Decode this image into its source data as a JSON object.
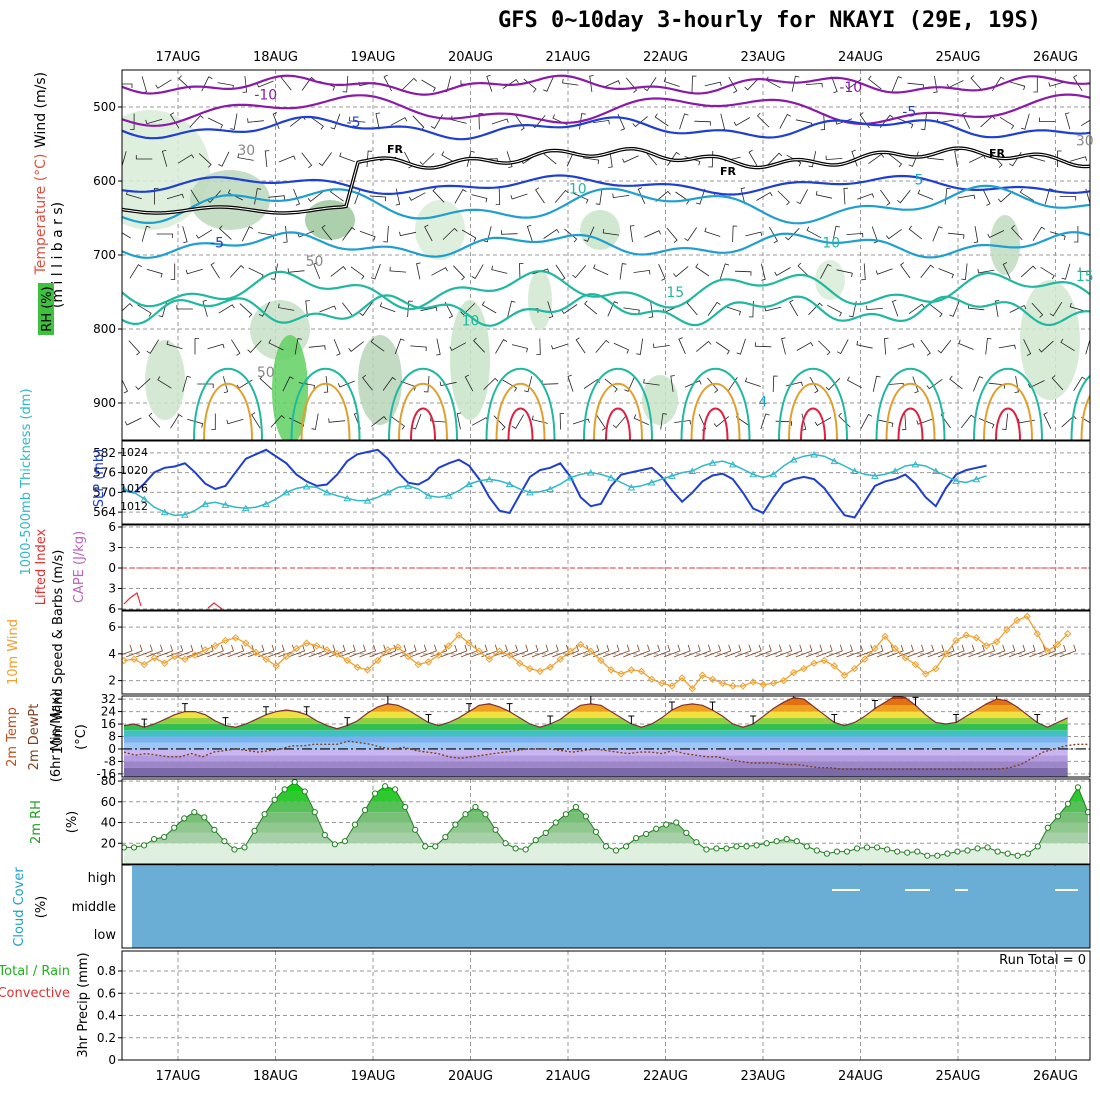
{
  "title": "GFS 0~10day 3-hourly for NKAYI (29E, 19S)",
  "colors": {
    "frame": "#000000",
    "grid": "#9a9a9a",
    "temp_purple": "#8a1aa8",
    "temp_blue": "#1f3fd0",
    "temp_cyan": "#1e9fd0",
    "temp_teal": "#20b8a0",
    "temp_orange": "#e0a030",
    "temp_red": "#e02040",
    "thickness": "#30b8c8",
    "slp": "#1f3fd0",
    "lifted_index": "#e03030",
    "cape": "#c060c0",
    "wind_speed": "#f0a030",
    "wind_barb": "#804020",
    "rh_green": "#10c010",
    "cloud": "#6aaed6",
    "precip_total": "#20b020",
    "precip_conv": "#e03030"
  },
  "chart_data": [
    {
      "id": "upper",
      "type": "contour",
      "ylabels": [
        "Wind (m/s)",
        "Temperature (°C)",
        "RH (%)",
        "(m i l l i b a r s)"
      ],
      "yticks": [
        500,
        600,
        700,
        800,
        900
      ],
      "ylim": [
        450,
        950
      ],
      "freezing_label": "FR",
      "contour_labels": [
        {
          "text": "-10",
          "day": 0.9,
          "p": 490
        },
        {
          "text": "-10",
          "day": 6.9,
          "p": 480
        },
        {
          "text": "-5",
          "day": 1.8,
          "p": 527
        },
        {
          "text": "-5",
          "day": 7.5,
          "p": 513
        },
        {
          "text": "-5",
          "day": 0.4,
          "p": 690
        },
        {
          "text": "5",
          "day": 7.6,
          "p": 605
        },
        {
          "text": "10",
          "day": 3.0,
          "p": 795
        },
        {
          "text": "10",
          "day": 6.7,
          "p": 690
        },
        {
          "text": "15",
          "day": 5.1,
          "p": 757
        },
        {
          "text": "15",
          "day": 9.3,
          "p": 735
        },
        {
          "text": "30",
          "day": 0.7,
          "p": 565
        },
        {
          "text": "30",
          "day": 9.3,
          "p": 552
        },
        {
          "text": "50",
          "day": 1.4,
          "p": 715
        },
        {
          "text": "50",
          "day": 0.9,
          "p": 865
        },
        {
          "text": "10",
          "day": 4.1,
          "p": 617
        },
        {
          "text": "4",
          "day": 6.0,
          "p": 905
        }
      ]
    },
    {
      "id": "thickness_slp",
      "type": "line",
      "ylabel_left": "1000-500mb Thickness (dm)",
      "ylabel_right": "SLP (mb)",
      "yticks_left": [
        564,
        570,
        576,
        582
      ],
      "yticks_right": [
        1012,
        1016,
        1020,
        1024
      ],
      "series": [
        {
          "name": "SLP (mb)",
          "values": [
            1015.5,
            1015,
            1017,
            1019.5,
            1020.5,
            1020.8,
            1021.5,
            1019.5,
            1017,
            1015.8,
            1016.5,
            1019.5,
            1022.5,
            1023.5,
            1024.5,
            1023,
            1021.5,
            1019,
            1017.5,
            1016.5,
            1016.8,
            1019,
            1022,
            1023.5,
            1024,
            1024.5,
            1022.5,
            1019.5,
            1017.2,
            1016.8,
            1018,
            1020.5,
            1021.5,
            1022.3,
            1021,
            1018,
            1014,
            1011,
            1010.5,
            1014.5,
            1018.5,
            1020,
            1020.5,
            1021.5,
            1018.5,
            1014,
            1012,
            1012.5,
            1016.5,
            1019,
            1019.5,
            1020,
            1020.5,
            1018.5,
            1015.5,
            1013,
            1015,
            1017.5,
            1018.8,
            1019.2,
            1018,
            1015,
            1011.5,
            1010.5,
            1014,
            1017,
            1018,
            1018.5,
            1018,
            1016,
            1013,
            1010,
            1009.5,
            1013,
            1016.5,
            1017.5,
            1018,
            1019,
            1017,
            1014,
            1012,
            1016,
            1019,
            1020,
            1020.5,
            1021
          ]
        },
        {
          "name": "1000-500mb Thickness (dm)",
          "values": [
            571,
            570,
            568,
            565.5,
            564,
            563,
            563.2,
            564.5,
            566.5,
            567,
            566.2,
            565.5,
            565.2,
            565.5,
            566.5,
            568,
            570,
            571.2,
            571.8,
            571.5,
            570,
            569,
            568.2,
            567.5,
            567.5,
            568.5,
            570,
            571.5,
            572,
            571,
            569,
            568.5,
            569,
            570.5,
            572.5,
            573.5,
            574,
            573.5,
            572.5,
            571,
            570,
            570.2,
            571,
            572.5,
            574.5,
            575.5,
            576,
            575.5,
            574.5,
            573,
            571.5,
            572,
            573,
            574,
            575,
            576,
            576.5,
            578,
            579,
            579.5,
            578.5,
            577,
            575.5,
            574.5,
            575.5,
            578,
            580,
            581,
            581.5,
            581,
            579.5,
            578,
            576.5,
            575.5,
            575,
            575.5,
            576.5,
            578,
            578.5,
            578,
            576.5,
            575,
            573.5,
            573,
            574,
            575
          ]
        }
      ]
    },
    {
      "id": "lifted_cape",
      "type": "line",
      "ylabel_left": "Lifted Index",
      "ylabel_right": "CAPE (J/kg)",
      "yticks": [
        -6,
        -3,
        0,
        3,
        6
      ],
      "ytick_labels": [
        "6",
        "3",
        "0",
        "3",
        "6"
      ]
    },
    {
      "id": "wind10m",
      "type": "line",
      "ylabel": "10m Wind Speed & Barbs (m/s)",
      "yticks": [
        2,
        4,
        6
      ],
      "ylim": [
        1,
        7.2
      ],
      "series": [
        {
          "name": "10m Wind Speed",
          "values": [
            3.5,
            3.6,
            3.2,
            3.7,
            3.3,
            3.8,
            3.6,
            3.9,
            4.3,
            4.6,
            5.0,
            5.2,
            4.8,
            4.1,
            3.6,
            3.1,
            3.8,
            4.4,
            4.8,
            4.6,
            4.3,
            4.0,
            3.5,
            3.0,
            2.8,
            3.5,
            4.3,
            4.5,
            3.8,
            3.2,
            3.4,
            3.9,
            4.6,
            5.4,
            4.8,
            4.2,
            3.6,
            4.2,
            3.9,
            3.3,
            2.9,
            2.7,
            3.0,
            3.6,
            4.2,
            4.7,
            4.2,
            3.5,
            2.8,
            2.5,
            2.8,
            2.7,
            2.1,
            1.8,
            1.6,
            2.2,
            1.4,
            2.4,
            2.1,
            1.8,
            1.6,
            1.6,
            1.9,
            1.7,
            1.8,
            2.0,
            2.6,
            2.9,
            3.3,
            3.5,
            3.1,
            2.4,
            2.9,
            3.6,
            4.4,
            5.3,
            4.4,
            3.7,
            3.2,
            2.5,
            2.9,
            4.0,
            5.0,
            5.4,
            5.2,
            4.6,
            4.9,
            5.8,
            6.5,
            6.8,
            5.5,
            4.2,
            4.7,
            5.5
          ]
        }
      ]
    },
    {
      "id": "temp2m",
      "type": "area",
      "ylabel": "2m Temp 2m DewPt (6hr Min/Max) (°C)",
      "yticks": [
        -16,
        -8,
        0,
        8,
        16,
        24,
        32
      ],
      "ylim": [
        -18,
        34
      ],
      "series": [
        {
          "name": "2m Temp",
          "values": [
            15,
            16,
            14,
            16,
            19,
            22,
            24,
            24,
            22,
            18,
            15,
            14,
            16,
            19,
            22,
            24,
            25,
            24,
            22,
            18,
            15,
            13,
            15,
            18,
            23,
            27,
            29,
            28,
            25,
            21,
            17,
            15,
            17,
            20,
            24,
            28,
            29,
            27,
            24,
            20,
            16,
            14,
            16,
            19,
            24,
            28,
            29,
            28,
            24,
            20,
            16,
            14,
            16,
            20,
            25,
            28,
            29,
            28,
            25,
            21,
            16,
            14,
            16,
            21,
            26,
            30,
            33,
            32,
            27,
            22,
            17,
            15,
            17,
            21,
            26,
            30,
            34,
            33,
            28,
            22,
            17,
            16,
            17,
            21,
            25,
            29,
            32,
            31,
            27,
            22,
            17,
            14,
            17,
            20
          ]
        },
        {
          "name": "2m DewPt",
          "values": [
            -2,
            -4,
            -3,
            -4,
            -5,
            -5,
            -3,
            -5,
            -2,
            -1,
            0,
            -1,
            -2,
            -1,
            0,
            2,
            2,
            3,
            3,
            3,
            5,
            4,
            3,
            1,
            0,
            1,
            -1,
            -2,
            -3,
            -5,
            -6,
            -5,
            -4,
            -3,
            -2,
            -1,
            0,
            0,
            0,
            -1,
            -2,
            -1,
            0,
            -1,
            -2,
            -3,
            -2,
            -2,
            -3,
            -1,
            -3,
            -4,
            -5,
            -5,
            -7,
            -8,
            -9,
            -9,
            -9,
            -10,
            -10,
            -11,
            -12,
            -12,
            -13,
            -13,
            -13,
            -13,
            -13,
            -13,
            -13,
            -13,
            -13,
            -13,
            -13,
            -13,
            -13,
            -13,
            -13,
            -12,
            -10,
            -6,
            -2,
            0,
            2,
            3,
            3
          ]
        }
      ]
    },
    {
      "id": "rh2m",
      "type": "area",
      "ylabel": "2m RH (%)",
      "yticks": [
        20,
        40,
        60,
        80
      ],
      "ylim": [
        0,
        82
      ],
      "series": [
        {
          "name": "2m RH",
          "values": [
            16,
            16,
            18,
            24,
            26,
            35,
            44,
            50,
            45,
            33,
            22,
            14,
            16,
            32,
            48,
            62,
            72,
            79,
            70,
            50,
            28,
            19,
            22,
            38,
            52,
            68,
            75,
            72,
            55,
            33,
            17,
            17,
            26,
            38,
            48,
            55,
            48,
            33,
            20,
            15,
            14,
            23,
            30,
            40,
            48,
            55,
            46,
            31,
            17,
            13,
            17,
            25,
            29,
            34,
            38,
            40,
            30,
            21,
            14,
            15,
            15,
            17,
            17,
            18,
            20,
            22,
            24,
            22,
            17,
            13,
            10,
            12,
            12,
            15,
            16,
            16,
            14,
            12,
            11,
            12,
            8,
            8,
            10,
            12,
            13,
            15,
            16,
            12,
            10,
            8,
            10,
            17,
            35,
            46,
            58,
            74,
            50
          ]
        }
      ]
    },
    {
      "id": "cloud",
      "type": "heatmap",
      "ylabel": "Cloud Cover (%)",
      "ytick_labels": [
        "high",
        "middle",
        "low"
      ]
    },
    {
      "id": "precip",
      "type": "bar",
      "ylabel_left": "Total / Rain",
      "ylabel_left2": "Convective",
      "ylabel": "3hr Precip (mm)",
      "yticks": [
        0,
        0.2,
        0.4,
        0.6,
        0.8
      ],
      "ylim": [
        0,
        0.98
      ],
      "run_total": "Run Total = 0"
    }
  ],
  "days": [
    "17AUG",
    "18AUG",
    "19AUG",
    "20AUG",
    "21AUG",
    "22AUG",
    "23AUG",
    "24AUG",
    "25AUG",
    "26AUG"
  ]
}
